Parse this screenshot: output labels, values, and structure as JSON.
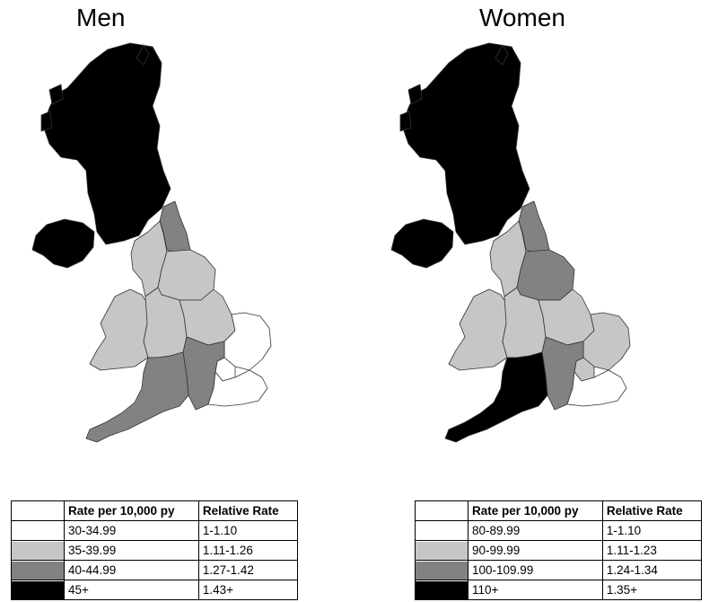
{
  "panels": {
    "men": {
      "title": "Men",
      "region_levels": {
        "scotland": "4",
        "northern_ireland": "4",
        "north_east": "3",
        "north_west": "2",
        "yorkshire": "2",
        "wales": "2",
        "west_midlands": "2",
        "east_midlands": "2",
        "east_of_england": "1",
        "south_west": "3",
        "south_east": "3",
        "london": "1",
        "south_coast": "1"
      },
      "legend": {
        "header": [
          "",
          "Rate per 10,000 py",
          "Relative Rate"
        ],
        "rows": [
          {
            "level": "1",
            "rate": "30-34.99",
            "relative": "1-1.10"
          },
          {
            "level": "2",
            "rate": "35-39.99",
            "relative": "1.11-1.26"
          },
          {
            "level": "3",
            "rate": "40-44.99",
            "relative": "1.27-1.42"
          },
          {
            "level": "4",
            "rate": "45+",
            "relative": "1.43+"
          }
        ]
      }
    },
    "women": {
      "title": "Women",
      "region_levels": {
        "scotland": "4",
        "northern_ireland": "4",
        "north_east": "3",
        "north_west": "2",
        "yorkshire": "3",
        "wales": "2",
        "west_midlands": "2",
        "east_midlands": "2",
        "east_of_england": "2",
        "south_west": "4",
        "south_east": "3",
        "london": "2",
        "south_coast": "1"
      },
      "legend": {
        "header": [
          "",
          "Rate per 10,000 py",
          "Relative Rate"
        ],
        "rows": [
          {
            "level": "1",
            "rate": "80-89.99",
            "relative": "1-1.10"
          },
          {
            "level": "2",
            "rate": "90-99.99",
            "relative": "1.11-1.23"
          },
          {
            "level": "3",
            "rate": "100-109.99",
            "relative": "1.24-1.34"
          },
          {
            "level": "4",
            "rate": "110+",
            "relative": "1.35+"
          }
        ]
      }
    }
  },
  "level_colors": {
    "1": "#ffffff",
    "2": "#c6c6c6",
    "3": "#828282",
    "4": "#000000"
  }
}
